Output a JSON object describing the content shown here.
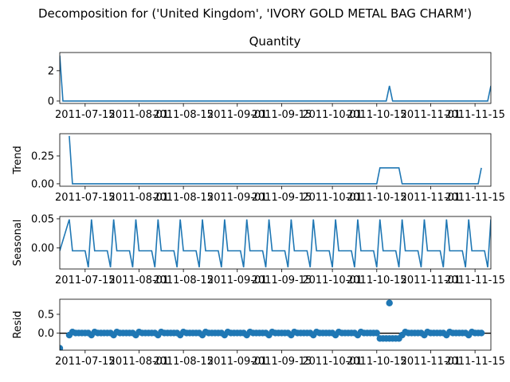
{
  "figure": {
    "suptitle": "Decomposition for ('United Kingdom', 'IVORY GOLD METAL BAG CHARM')"
  },
  "colors": {
    "series": "#1f77b4",
    "axis": "#000000"
  },
  "chart_data": [
    {
      "type": "line",
      "name": "observed",
      "title": "Quantity",
      "ylabel": "",
      "xlim": [
        "2011-07-07",
        "2011-11-20"
      ],
      "ylim": [
        -0.16,
        3.2
      ],
      "yticks": [
        0,
        2
      ],
      "ytick_labels": [
        "0",
        "2"
      ],
      "xtick_labels": [
        "2011-07-15",
        "2011-08-01",
        "2011-08-15",
        "2011-09-01",
        "2011-09-15",
        "2011-10-01",
        "2011-10-15",
        "2011-11-01",
        "2011-11-15"
      ],
      "xticks": [
        "2011-07-15",
        "2011-08-01",
        "2011-08-15",
        "2011-09-01",
        "2011-09-15",
        "2011-10-01",
        "2011-10-15",
        "2011-11-01",
        "2011-11-15"
      ],
      "points": [
        [
          "2011-07-07",
          3
        ],
        [
          "2011-07-08",
          0
        ],
        [
          "2011-10-18",
          0
        ],
        [
          "2011-10-19",
          1
        ],
        [
          "2011-10-20",
          0
        ],
        [
          "2011-11-19",
          0
        ],
        [
          "2011-11-20",
          1
        ]
      ]
    },
    {
      "type": "line",
      "name": "trend",
      "title": "",
      "ylabel": "Trend",
      "xlim": [
        "2011-07-07",
        "2011-11-20"
      ],
      "ylim": [
        -0.022,
        0.45
      ],
      "yticks": [
        0,
        0.25
      ],
      "ytick_labels": [
        "0.00",
        "0.25"
      ],
      "xtick_labels": [
        "2011-07-15",
        "2011-08-01",
        "2011-08-15",
        "2011-09-01",
        "2011-09-15",
        "2011-10-01",
        "2011-10-15",
        "2011-11-01",
        "2011-11-15"
      ],
      "xticks": [
        "2011-07-15",
        "2011-08-01",
        "2011-08-15",
        "2011-09-01",
        "2011-09-15",
        "2011-10-01",
        "2011-10-15",
        "2011-11-01",
        "2011-11-15"
      ],
      "points": [
        [
          "2011-07-10",
          0.43
        ],
        [
          "2011-07-11",
          0
        ],
        [
          "2011-10-15",
          0
        ],
        [
          "2011-10-16",
          0.143
        ],
        [
          "2011-10-22",
          0.143
        ],
        [
          "2011-10-23",
          0
        ],
        [
          "2011-11-16",
          0
        ],
        [
          "2011-11-17",
          0.143
        ]
      ]
    },
    {
      "type": "line",
      "name": "seasonal",
      "title": "",
      "ylabel": "Seasonal",
      "xlim": [
        "2011-07-07",
        "2011-11-20"
      ],
      "ylim": [
        -0.036,
        0.054
      ],
      "yticks": [
        0,
        0.05
      ],
      "ytick_labels": [
        "0.00",
        "0.05"
      ],
      "xtick_labels": [
        "2011-07-15",
        "2011-08-01",
        "2011-08-15",
        "2011-09-01",
        "2011-09-15",
        "2011-10-01",
        "2011-10-15",
        "2011-11-01",
        "2011-11-15"
      ],
      "xticks": [
        "2011-07-15",
        "2011-08-01",
        "2011-08-15",
        "2011-09-01",
        "2011-09-15",
        "2011-10-01",
        "2011-10-15",
        "2011-11-01",
        "2011-11-15"
      ],
      "period": 7,
      "pattern": [
        0.049,
        -0.0048,
        -0.0048,
        -0.0048,
        -0.0048,
        -0.0048,
        -0.033
      ],
      "start": "2011-07-10"
    },
    {
      "type": "scatter",
      "name": "resid",
      "title": "",
      "ylabel": "Resid",
      "xlim": [
        "2011-07-07",
        "2011-11-20"
      ],
      "ylim": [
        -0.45,
        0.9
      ],
      "yticks": [
        0,
        0.5
      ],
      "ytick_labels": [
        "0.0",
        "0.5"
      ],
      "xtick_labels": [
        "2011-07-15",
        "2011-08-01",
        "2011-08-15",
        "2011-09-01",
        "2011-09-15",
        "2011-10-01",
        "2011-10-15",
        "2011-11-01",
        "2011-11-15"
      ],
      "xticks": [
        "2011-07-15",
        "2011-08-01",
        "2011-08-15",
        "2011-09-01",
        "2011-09-15",
        "2011-10-01",
        "2011-10-15",
        "2011-11-01",
        "2011-11-15"
      ],
      "zero_line": true,
      "start": "2011-07-10",
      "end": "2011-11-17",
      "outliers": [
        [
          "2011-07-07",
          -0.4
        ],
        [
          "2011-10-19",
          0.8
        ]
      ],
      "negative_window": [
        "2011-10-16",
        "2011-10-22",
        -0.14
      ]
    }
  ]
}
